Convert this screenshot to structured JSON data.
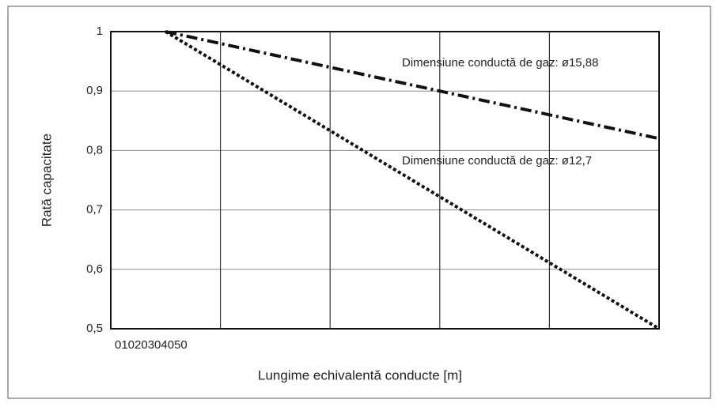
{
  "chart_data": {
    "type": "line",
    "x_label": "Lungime echivalentă conducte [m]",
    "y_label": "Rată capacitate",
    "xlim": [
      0,
      50
    ],
    "xticks": [
      0,
      10,
      20,
      30,
      40,
      50
    ],
    "ylim": [
      0.5,
      1
    ],
    "yticks": [
      {
        "value": 0.5,
        "label": "0,5"
      },
      {
        "value": 0.6,
        "label": "0,6"
      },
      {
        "value": 0.7,
        "label": "0,7"
      },
      {
        "value": 0.8,
        "label": "0,8"
      },
      {
        "value": 0.9,
        "label": "0,9"
      },
      1
    ],
    "grid": true,
    "series": [
      {
        "name": "Dimensiune conductă de gaz: ø15,88",
        "color": "#111111",
        "style": "dash-dot",
        "x": [
          5,
          50
        ],
        "values": [
          1,
          0.82
        ]
      },
      {
        "name": "Dimensiune conductă de gaz: ø12,7",
        "color": "#111111",
        "style": "dotted",
        "x": [
          5,
          50
        ],
        "values": [
          1,
          0.5
        ]
      }
    ]
  }
}
